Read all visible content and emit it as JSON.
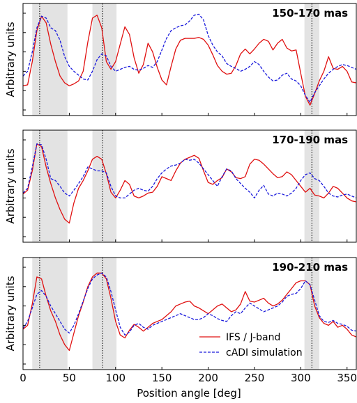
{
  "chart_data": {
    "type": "line",
    "xlabel": "Position angle [deg]",
    "ylabel": "Arbitrary units",
    "xlim": [
      0,
      360
    ],
    "ylim": [
      0,
      1
    ],
    "xticks": [
      "0",
      "50",
      "100",
      "150",
      "200",
      "250",
      "300",
      "350"
    ],
    "xtick_values": [
      0,
      50,
      100,
      150,
      200,
      250,
      300,
      350
    ],
    "grid": false,
    "shaded_regions": [
      [
        10,
        48
      ],
      [
        75,
        101
      ],
      [
        304,
        320
      ]
    ],
    "marker_lines": [
      18,
      86,
      312
    ],
    "legend": {
      "placement": "lower-right",
      "entries": [
        {
          "name": "IFS / J-band",
          "color": "#e01010",
          "style": "solid"
        },
        {
          "name": "cADI simulation",
          "color": "#1a1adc",
          "style": "dashed"
        }
      ]
    },
    "panels": [
      {
        "title": "150-170 mas",
        "series": [
          {
            "name": "IFS / J-band",
            "x": [
              0,
              5,
              10,
              15,
              20,
              25,
              30,
              35,
              40,
              45,
              50,
              55,
              60,
              65,
              70,
              75,
              80,
              85,
              90,
              95,
              100,
              105,
              110,
              115,
              120,
              125,
              130,
              135,
              140,
              145,
              150,
              155,
              160,
              165,
              170,
              175,
              180,
              185,
              190,
              195,
              200,
              205,
              210,
              215,
              220,
              225,
              230,
              235,
              240,
              245,
              250,
              255,
              260,
              265,
              270,
              275,
              280,
              285,
              290,
              295,
              300,
              305,
              310,
              315,
              320,
              325,
              330,
              335,
              340,
              345,
              350,
              355,
              360
            ],
            "y": [
              0.25,
              0.26,
              0.5,
              0.82,
              0.97,
              0.9,
              0.68,
              0.5,
              0.35,
              0.28,
              0.25,
              0.27,
              0.3,
              0.4,
              0.7,
              0.95,
              0.98,
              0.85,
              0.5,
              0.42,
              0.5,
              0.68,
              0.86,
              0.78,
              0.54,
              0.38,
              0.47,
              0.69,
              0.6,
              0.44,
              0.31,
              0.26,
              0.45,
              0.63,
              0.72,
              0.74,
              0.74,
              0.74,
              0.75,
              0.73,
              0.67,
              0.57,
              0.46,
              0.4,
              0.37,
              0.38,
              0.46,
              0.58,
              0.63,
              0.58,
              0.63,
              0.69,
              0.73,
              0.71,
              0.62,
              0.69,
              0.73,
              0.64,
              0.61,
              0.62,
              0.38,
              0.14,
              0.05,
              0.17,
              0.3,
              0.4,
              0.55,
              0.43,
              0.42,
              0.45,
              0.4,
              0.29,
              0.28
            ]
          },
          {
            "name": "cADI simulation",
            "x": [
              0,
              5,
              10,
              15,
              20,
              25,
              30,
              35,
              40,
              45,
              50,
              55,
              60,
              65,
              70,
              75,
              80,
              85,
              90,
              95,
              100,
              105,
              110,
              115,
              120,
              125,
              130,
              135,
              140,
              145,
              150,
              155,
              160,
              165,
              170,
              175,
              180,
              185,
              190,
              195,
              200,
              205,
              210,
              215,
              220,
              225,
              230,
              235,
              240,
              245,
              250,
              255,
              260,
              265,
              270,
              275,
              280,
              285,
              290,
              295,
              300,
              305,
              310,
              315,
              320,
              325,
              330,
              335,
              340,
              345,
              350,
              355,
              360
            ],
            "y": [
              0.35,
              0.4,
              0.6,
              0.85,
              0.97,
              0.95,
              0.85,
              0.82,
              0.72,
              0.55,
              0.45,
              0.4,
              0.36,
              0.32,
              0.31,
              0.4,
              0.52,
              0.58,
              0.56,
              0.45,
              0.4,
              0.42,
              0.44,
              0.45,
              0.42,
              0.41,
              0.43,
              0.46,
              0.44,
              0.5,
              0.62,
              0.74,
              0.82,
              0.85,
              0.87,
              0.88,
              0.92,
              0.98,
              0.99,
              0.93,
              0.77,
              0.67,
              0.6,
              0.56,
              0.48,
              0.45,
              0.43,
              0.4,
              0.42,
              0.45,
              0.5,
              0.47,
              0.4,
              0.34,
              0.3,
              0.31,
              0.36,
              0.38,
              0.32,
              0.3,
              0.25,
              0.15,
              0.08,
              0.18,
              0.25,
              0.32,
              0.38,
              0.42,
              0.45,
              0.47,
              0.46,
              0.44,
              0.42
            ]
          }
        ]
      },
      {
        "title": "170-190 mas",
        "series": [
          {
            "name": "IFS / J-band",
            "x": [
              0,
              5,
              10,
              15,
              20,
              25,
              30,
              35,
              40,
              45,
              50,
              55,
              60,
              65,
              70,
              75,
              80,
              85,
              90,
              95,
              100,
              105,
              110,
              115,
              120,
              125,
              130,
              135,
              140,
              145,
              150,
              155,
              160,
              165,
              170,
              175,
              180,
              185,
              190,
              195,
              200,
              205,
              210,
              215,
              220,
              225,
              230,
              235,
              240,
              245,
              250,
              255,
              260,
              265,
              270,
              275,
              280,
              285,
              290,
              295,
              300,
              305,
              310,
              315,
              320,
              325,
              330,
              335,
              340,
              345,
              350,
              355,
              360
            ],
            "y": [
              0.44,
              0.48,
              0.68,
              0.96,
              0.93,
              0.72,
              0.55,
              0.4,
              0.28,
              0.18,
              0.14,
              0.35,
              0.5,
              0.58,
              0.68,
              0.8,
              0.83,
              0.8,
              0.65,
              0.46,
              0.4,
              0.48,
              0.58,
              0.54,
              0.42,
              0.4,
              0.42,
              0.45,
              0.46,
              0.52,
              0.62,
              0.6,
              0.58,
              0.68,
              0.76,
              0.8,
              0.82,
              0.84,
              0.81,
              0.68,
              0.56,
              0.54,
              0.58,
              0.61,
              0.7,
              0.67,
              0.61,
              0.6,
              0.62,
              0.75,
              0.8,
              0.79,
              0.75,
              0.7,
              0.65,
              0.61,
              0.62,
              0.67,
              0.64,
              0.58,
              0.52,
              0.46,
              0.5,
              0.43,
              0.42,
              0.4,
              0.45,
              0.52,
              0.5,
              0.45,
              0.4,
              0.37,
              0.36
            ]
          },
          {
            "name": "cADI simulation",
            "x": [
              0,
              5,
              10,
              15,
              20,
              25,
              30,
              35,
              40,
              45,
              50,
              55,
              60,
              65,
              70,
              75,
              80,
              85,
              90,
              95,
              100,
              105,
              110,
              115,
              120,
              125,
              130,
              135,
              140,
              145,
              150,
              155,
              160,
              165,
              170,
              175,
              180,
              185,
              190,
              195,
              200,
              205,
              210,
              215,
              220,
              225,
              230,
              235,
              240,
              245,
              250,
              255,
              260,
              265,
              270,
              275,
              280,
              285,
              290,
              295,
              300,
              305,
              310,
              315,
              320,
              325,
              330,
              335,
              340,
              345,
              350,
              355,
              360
            ],
            "y": [
              0.45,
              0.5,
              0.72,
              0.96,
              0.95,
              0.8,
              0.6,
              0.58,
              0.52,
              0.45,
              0.42,
              0.48,
              0.55,
              0.62,
              0.72,
              0.7,
              0.68,
              0.68,
              0.66,
              0.52,
              0.42,
              0.4,
              0.4,
              0.44,
              0.48,
              0.5,
              0.48,
              0.47,
              0.52,
              0.6,
              0.66,
              0.7,
              0.73,
              0.74,
              0.76,
              0.8,
              0.79,
              0.8,
              0.76,
              0.7,
              0.64,
              0.58,
              0.52,
              0.62,
              0.7,
              0.68,
              0.6,
              0.55,
              0.5,
              0.46,
              0.4,
              0.48,
              0.53,
              0.44,
              0.42,
              0.45,
              0.44,
              0.42,
              0.45,
              0.5,
              0.58,
              0.64,
              0.66,
              0.6,
              0.58,
              0.52,
              0.45,
              0.42,
              0.41,
              0.43,
              0.44,
              0.42,
              0.4
            ]
          }
        ]
      },
      {
        "title": "190-210 mas",
        "series": [
          {
            "name": "IFS / J-band",
            "x": [
              0,
              5,
              10,
              15,
              20,
              25,
              30,
              35,
              40,
              45,
              50,
              55,
              60,
              65,
              70,
              75,
              80,
              85,
              90,
              95,
              100,
              105,
              110,
              115,
              120,
              125,
              130,
              135,
              140,
              145,
              150,
              155,
              160,
              165,
              170,
              175,
              180,
              185,
              190,
              195,
              200,
              205,
              210,
              215,
              220,
              225,
              230,
              235,
              240,
              245,
              250,
              255,
              260,
              265,
              270,
              275,
              280,
              285,
              290,
              295,
              300,
              305,
              310,
              315,
              320,
              325,
              330,
              335,
              340,
              345,
              350,
              355,
              360
            ],
            "y": [
              0.36,
              0.4,
              0.62,
              0.9,
              0.88,
              0.7,
              0.55,
              0.44,
              0.3,
              0.2,
              0.14,
              0.32,
              0.5,
              0.64,
              0.8,
              0.9,
              0.94,
              0.94,
              0.88,
              0.68,
              0.44,
              0.3,
              0.27,
              0.35,
              0.41,
              0.38,
              0.34,
              0.38,
              0.42,
              0.44,
              0.46,
              0.5,
              0.54,
              0.6,
              0.62,
              0.64,
              0.65,
              0.6,
              0.58,
              0.55,
              0.52,
              0.56,
              0.6,
              0.62,
              0.58,
              0.54,
              0.56,
              0.62,
              0.75,
              0.65,
              0.64,
              0.66,
              0.68,
              0.63,
              0.6,
              0.62,
              0.66,
              0.72,
              0.78,
              0.84,
              0.86,
              0.86,
              0.82,
              0.6,
              0.48,
              0.42,
              0.4,
              0.44,
              0.38,
              0.4,
              0.36,
              0.3,
              0.28
            ]
          },
          {
            "name": "cADI simulation",
            "x": [
              0,
              5,
              10,
              15,
              20,
              25,
              30,
              35,
              40,
              45,
              50,
              55,
              60,
              65,
              70,
              75,
              80,
              85,
              90,
              95,
              100,
              105,
              110,
              115,
              120,
              125,
              130,
              135,
              140,
              145,
              150,
              155,
              160,
              165,
              170,
              175,
              180,
              185,
              190,
              195,
              200,
              205,
              210,
              215,
              220,
              225,
              230,
              235,
              240,
              245,
              250,
              255,
              260,
              265,
              270,
              275,
              280,
              285,
              290,
              295,
              300,
              305,
              310,
              315,
              320,
              325,
              330,
              335,
              340,
              345,
              350,
              355,
              360
            ],
            "y": [
              0.37,
              0.44,
              0.58,
              0.72,
              0.76,
              0.7,
              0.6,
              0.52,
              0.44,
              0.36,
              0.32,
              0.4,
              0.52,
              0.65,
              0.78,
              0.88,
              0.92,
              0.94,
              0.9,
              0.75,
              0.56,
              0.38,
              0.3,
              0.33,
              0.4,
              0.42,
              0.38,
              0.36,
              0.4,
              0.42,
              0.44,
              0.46,
              0.48,
              0.5,
              0.52,
              0.5,
              0.48,
              0.46,
              0.46,
              0.48,
              0.52,
              0.5,
              0.47,
              0.45,
              0.44,
              0.5,
              0.54,
              0.52,
              0.58,
              0.63,
              0.6,
              0.57,
              0.54,
              0.56,
              0.58,
              0.6,
              0.64,
              0.7,
              0.72,
              0.73,
              0.78,
              0.86,
              0.82,
              0.66,
              0.5,
              0.44,
              0.43,
              0.45,
              0.42,
              0.41,
              0.39,
              0.35,
              0.34
            ]
          }
        ]
      }
    ]
  }
}
